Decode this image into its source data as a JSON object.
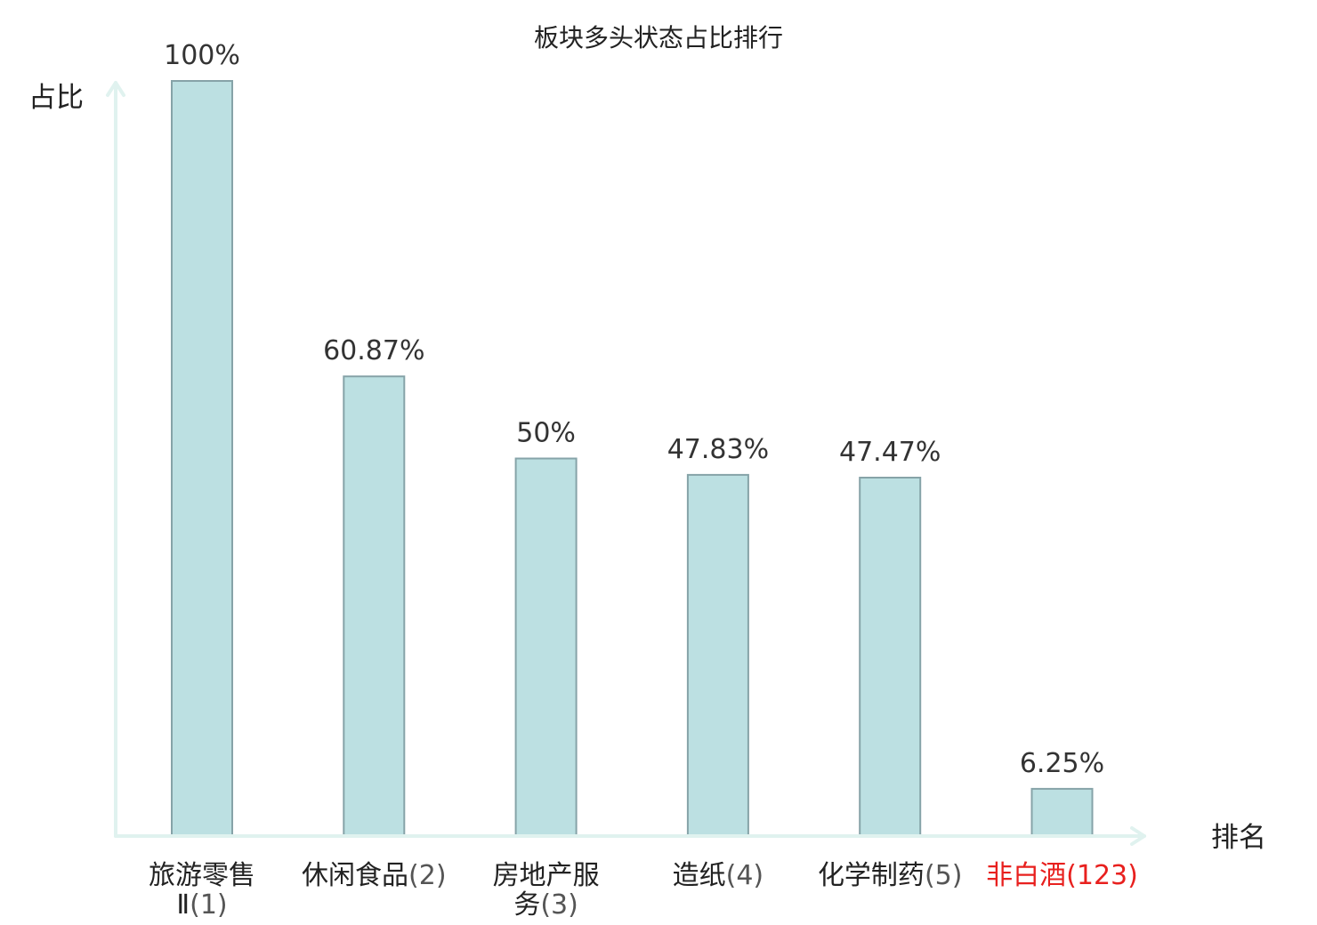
{
  "chart_data": {
    "type": "bar",
    "title": "板块多头状态占比排行",
    "ylabel": "占比",
    "xlabel": "排名",
    "ylim": [
      0,
      100
    ],
    "grid": false,
    "categories": [
      {
        "name_lines": [
          "旅游零售",
          "Ⅱ"
        ],
        "rank": "(1)",
        "highlight": false
      },
      {
        "name_lines": [
          "休闲食品"
        ],
        "rank": "(2)",
        "highlight": false
      },
      {
        "name_lines": [
          "房地产服",
          "务"
        ],
        "rank": "(3)",
        "highlight": false
      },
      {
        "name_lines": [
          "造纸"
        ],
        "rank": "(4)",
        "highlight": false
      },
      {
        "name_lines": [
          "化学制药"
        ],
        "rank": "(5)",
        "highlight": false
      },
      {
        "name_lines": [
          "非白酒"
        ],
        "rank": "(123)",
        "highlight": true
      }
    ],
    "values": [
      100,
      60.87,
      50,
      47.83,
      47.47,
      6.25
    ],
    "value_labels": [
      "100%",
      "60.87%",
      "50%",
      "47.83%",
      "47.47%",
      "6.25%"
    ],
    "colors": {
      "bar_fill": "#bce0e2",
      "bar_stroke": "#86a3a8",
      "axis": "#e0f2ef",
      "text": "#222222",
      "rank_text": "#555555",
      "highlight": "#e8201e"
    }
  }
}
